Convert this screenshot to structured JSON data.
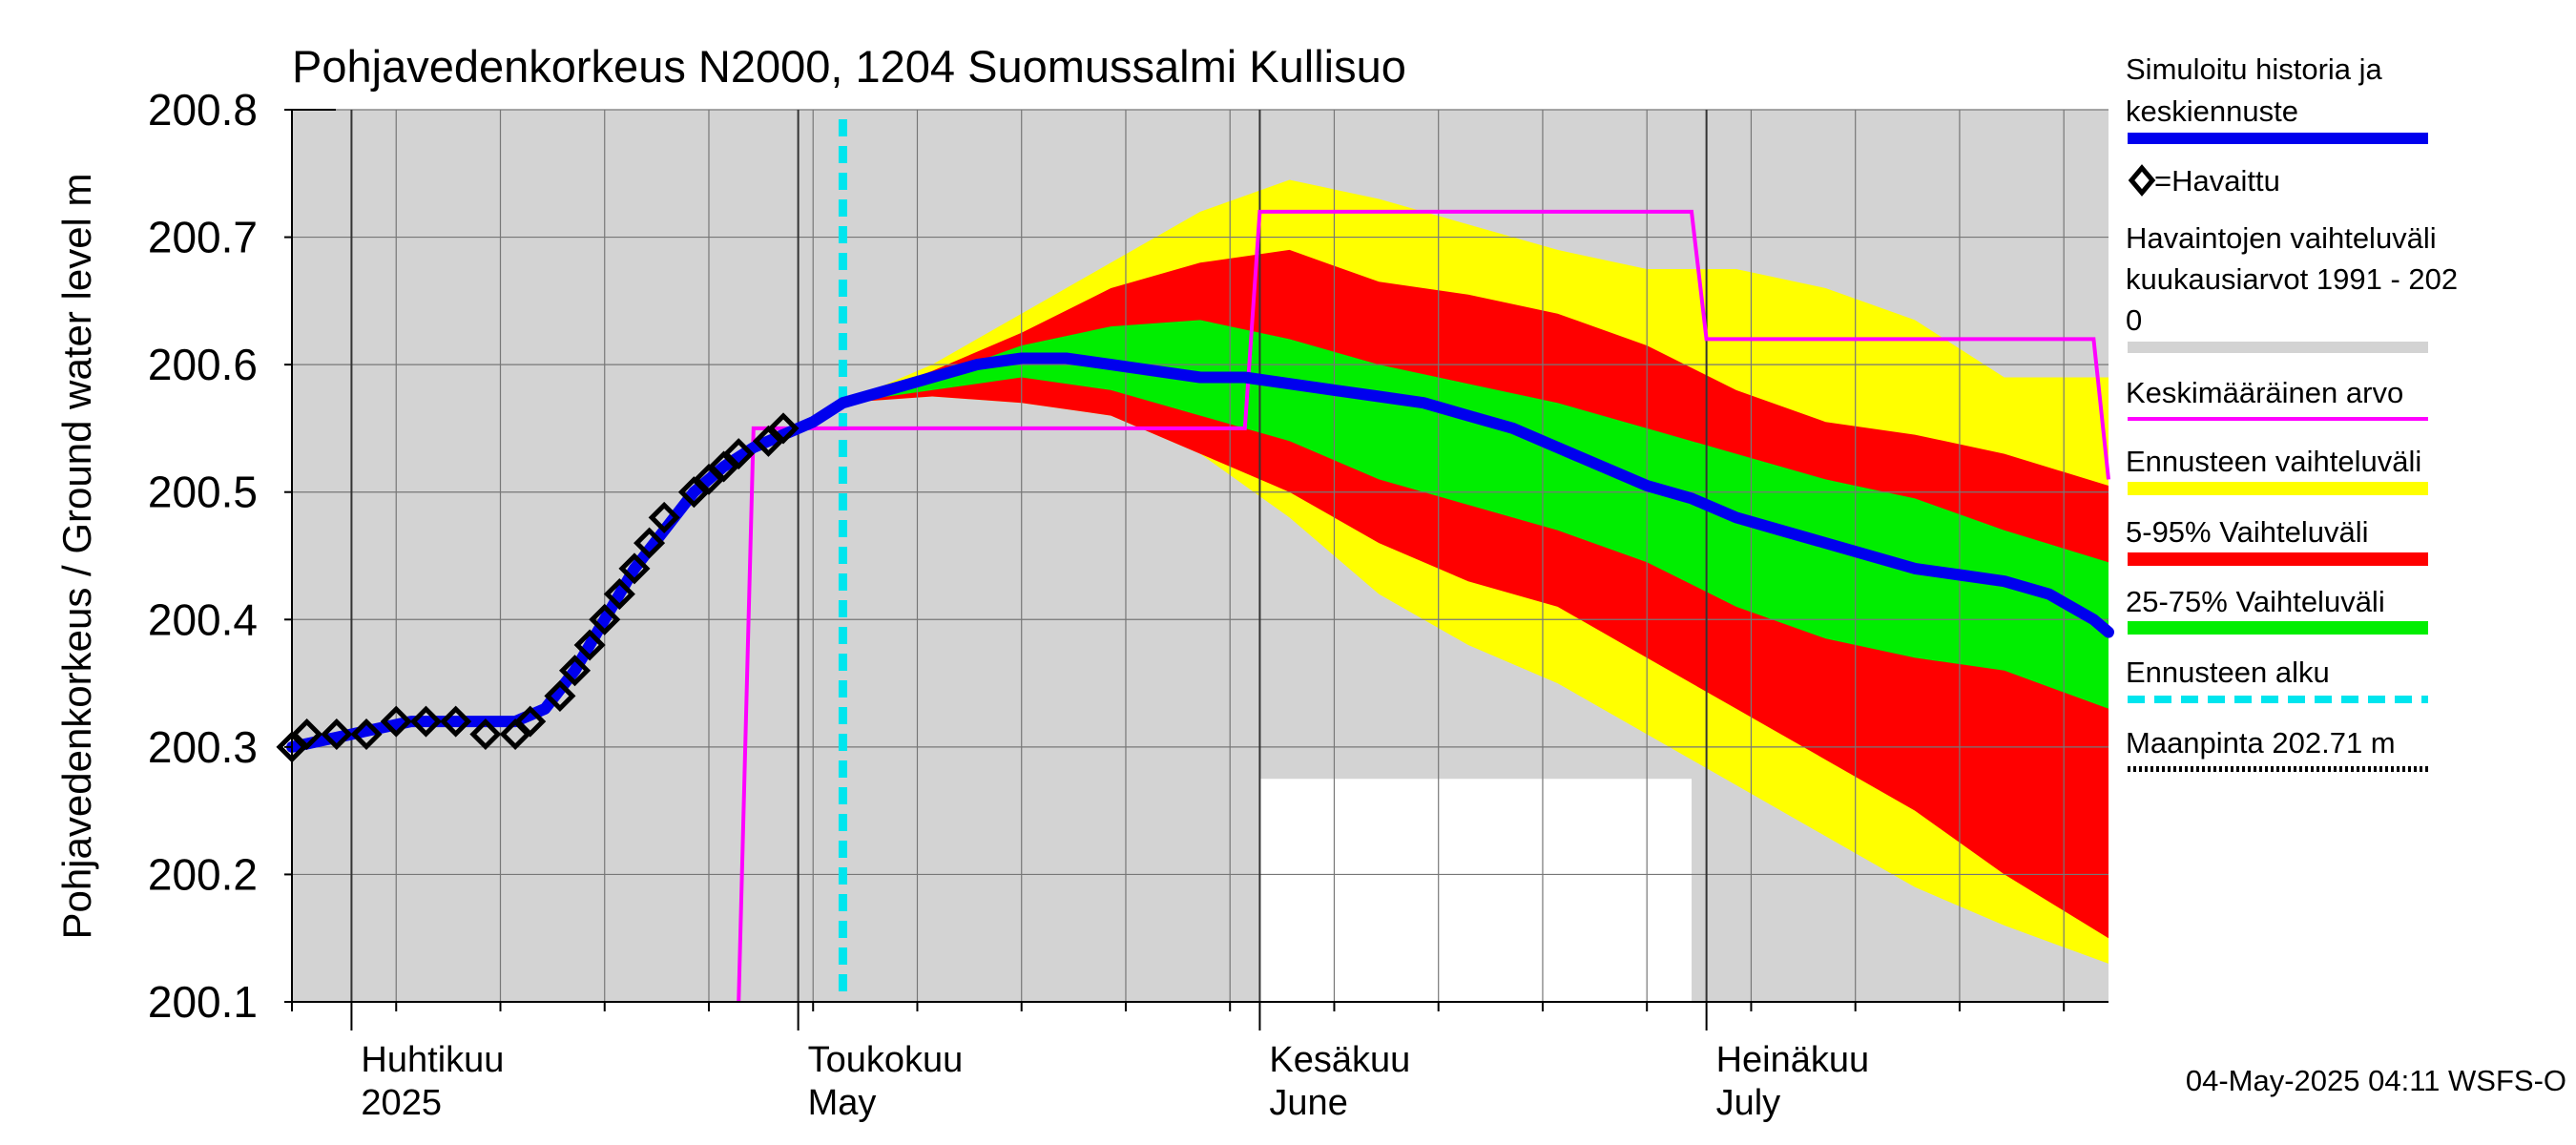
{
  "chart_data": {
    "type": "area",
    "title": "Pohjavedenkorkeus N2000, 1204 Suomussalmi Kullisuo",
    "ylabel": "Pohjavedenkorkeus / Ground water level   m",
    "ylim": [
      200.1,
      200.8
    ],
    "xlim": [
      "2025-03-28",
      "2025-07-28"
    ],
    "y_ticks": [
      "200.1",
      "200.2",
      "200.3",
      "200.4",
      "200.5",
      "200.6",
      "200.7",
      "200.8"
    ],
    "month_labels": [
      {
        "date": "2025-04-01",
        "fi": "Huhtikuu",
        "en": "2025"
      },
      {
        "date": "2025-05-01",
        "fi": "Toukokuu",
        "en": "May"
      },
      {
        "date": "2025-06-01",
        "fi": "Kesäkuu",
        "en": "June"
      },
      {
        "date": "2025-07-01",
        "fi": "Heinäkuu",
        "en": "July"
      }
    ],
    "forecast_start": "2025-05-04",
    "footer": "04-May-2025 04:11 WSFS-O",
    "colors": {
      "plot_bg": "#d3d3d3",
      "grid": "#777777",
      "simulated": "#0000ee",
      "observed": "#000000",
      "mean": "#ff00ff",
      "forecast_range": "#ffff00",
      "p5_95": "#ff0000",
      "p25_75": "#00ee00",
      "forecast_start": "#00e5ee",
      "ground": "#000000",
      "white_window": "#ffffff"
    },
    "legend": [
      {
        "key": "simulated",
        "label": "Simuloitu historia ja keskiennuste",
        "style": "line-thick"
      },
      {
        "key": "observed",
        "label": "=Havaittu",
        "style": "diamond"
      },
      {
        "key": "hist_range",
        "label": "Havaintojen vaihteluväli  kuukausiarvot 1991 - 2020",
        "style": "band-grey"
      },
      {
        "key": "mean",
        "label": "Keskimääräinen arvo",
        "style": "line-thin"
      },
      {
        "key": "forecast_range",
        "label": "Ennusteen vaihteluväli",
        "style": "band"
      },
      {
        "key": "p5_95",
        "label": "5-95% Vaihteluväli",
        "style": "band"
      },
      {
        "key": "p25_75",
        "label": "25-75% Vaihteluväli",
        "style": "band"
      },
      {
        "key": "forecast_start",
        "label": "Ennusteen alku",
        "style": "dashed"
      },
      {
        "key": "ground",
        "label": "Maanpinta 202.71 m",
        "style": "dotted"
      }
    ],
    "white_window": {
      "x": [
        "2025-06-01",
        "2025-06-30"
      ],
      "y": [
        200.1,
        200.275
      ]
    },
    "observed": {
      "x": [
        "2025-03-28",
        "2025-03-29",
        "2025-03-31",
        "2025-04-02",
        "2025-04-04",
        "2025-04-06",
        "2025-04-08",
        "2025-04-10",
        "2025-04-12",
        "2025-04-13",
        "2025-04-15",
        "2025-04-16",
        "2025-04-17",
        "2025-04-18",
        "2025-04-19",
        "2025-04-20",
        "2025-04-21",
        "2025-04-22",
        "2025-04-24",
        "2025-04-25",
        "2025-04-26",
        "2025-04-27",
        "2025-04-29",
        "2025-04-30"
      ],
      "y": [
        200.3,
        200.31,
        200.31,
        200.31,
        200.32,
        200.32,
        200.32,
        200.31,
        200.31,
        200.32,
        200.34,
        200.36,
        200.38,
        200.4,
        200.42,
        200.44,
        200.46,
        200.48,
        200.5,
        200.51,
        200.52,
        200.53,
        200.54,
        200.55
      ]
    },
    "simulated": {
      "x": [
        "2025-03-28",
        "2025-04-01",
        "2025-04-05",
        "2025-04-09",
        "2025-04-12",
        "2025-04-14",
        "2025-04-16",
        "2025-04-18",
        "2025-04-20",
        "2025-04-22",
        "2025-04-24",
        "2025-04-26",
        "2025-04-28",
        "2025-04-30",
        "2025-05-02",
        "2025-05-04",
        "2025-05-07",
        "2025-05-10",
        "2025-05-13",
        "2025-05-16",
        "2025-05-19",
        "2025-05-22",
        "2025-05-25",
        "2025-05-28",
        "2025-05-31",
        "2025-06-03",
        "2025-06-06",
        "2025-06-09",
        "2025-06-12",
        "2025-06-15",
        "2025-06-18",
        "2025-06-21",
        "2025-06-24",
        "2025-06-27",
        "2025-06-30",
        "2025-07-03",
        "2025-07-06",
        "2025-07-09",
        "2025-07-12",
        "2025-07-15",
        "2025-07-18",
        "2025-07-21",
        "2025-07-24",
        "2025-07-27",
        "2025-07-28"
      ],
      "y": [
        200.3,
        200.31,
        200.32,
        200.32,
        200.32,
        200.33,
        200.36,
        200.4,
        200.44,
        200.47,
        200.5,
        200.52,
        200.535,
        200.545,
        200.555,
        200.57,
        200.58,
        200.59,
        200.6,
        200.605,
        200.605,
        200.6,
        200.595,
        200.59,
        200.59,
        200.585,
        200.58,
        200.575,
        200.57,
        200.56,
        200.55,
        200.535,
        200.52,
        200.505,
        200.495,
        200.48,
        200.47,
        200.46,
        200.45,
        200.44,
        200.435,
        200.43,
        200.42,
        200.4,
        200.39
      ]
    },
    "bands_x": [
      "2025-05-04",
      "2025-05-10",
      "2025-05-16",
      "2025-05-22",
      "2025-05-28",
      "2025-06-03",
      "2025-06-09",
      "2025-06-15",
      "2025-06-21",
      "2025-06-27",
      "2025-07-03",
      "2025-07-09",
      "2025-07-15",
      "2025-07-21",
      "2025-07-28"
    ],
    "forecast_range": {
      "upper": [
        200.57,
        200.6,
        200.64,
        200.68,
        200.72,
        200.745,
        200.73,
        200.71,
        200.69,
        200.675,
        200.675,
        200.66,
        200.635,
        200.59,
        200.59
      ],
      "lower": [
        200.57,
        200.575,
        200.57,
        200.56,
        200.53,
        200.48,
        200.42,
        200.38,
        200.35,
        200.31,
        200.27,
        200.23,
        200.19,
        200.16,
        200.13
      ]
    },
    "p5_95": {
      "upper": [
        200.57,
        200.595,
        200.625,
        200.66,
        200.68,
        200.69,
        200.665,
        200.655,
        200.64,
        200.615,
        200.58,
        200.555,
        200.545,
        200.53,
        200.505
      ],
      "lower": [
        200.57,
        200.575,
        200.57,
        200.56,
        200.53,
        200.5,
        200.46,
        200.43,
        200.41,
        200.37,
        200.33,
        200.29,
        200.25,
        200.2,
        200.15
      ]
    },
    "p25_75": {
      "upper": [
        200.57,
        200.59,
        200.615,
        200.63,
        200.635,
        200.62,
        200.6,
        200.585,
        200.57,
        200.55,
        200.53,
        200.51,
        200.495,
        200.47,
        200.445
      ],
      "lower": [
        200.57,
        200.58,
        200.59,
        200.58,
        200.56,
        200.54,
        200.51,
        200.49,
        200.47,
        200.445,
        200.41,
        200.385,
        200.37,
        200.36,
        200.33
      ]
    },
    "mean": {
      "x": [
        "2025-04-27",
        "2025-04-28",
        "2025-05-31",
        "2025-06-01",
        "2025-06-30",
        "2025-07-01",
        "2025-07-27",
        "2025-07-28"
      ],
      "y": [
        200.1,
        200.55,
        200.55,
        200.72,
        200.72,
        200.62,
        200.62,
        200.51
      ]
    }
  }
}
